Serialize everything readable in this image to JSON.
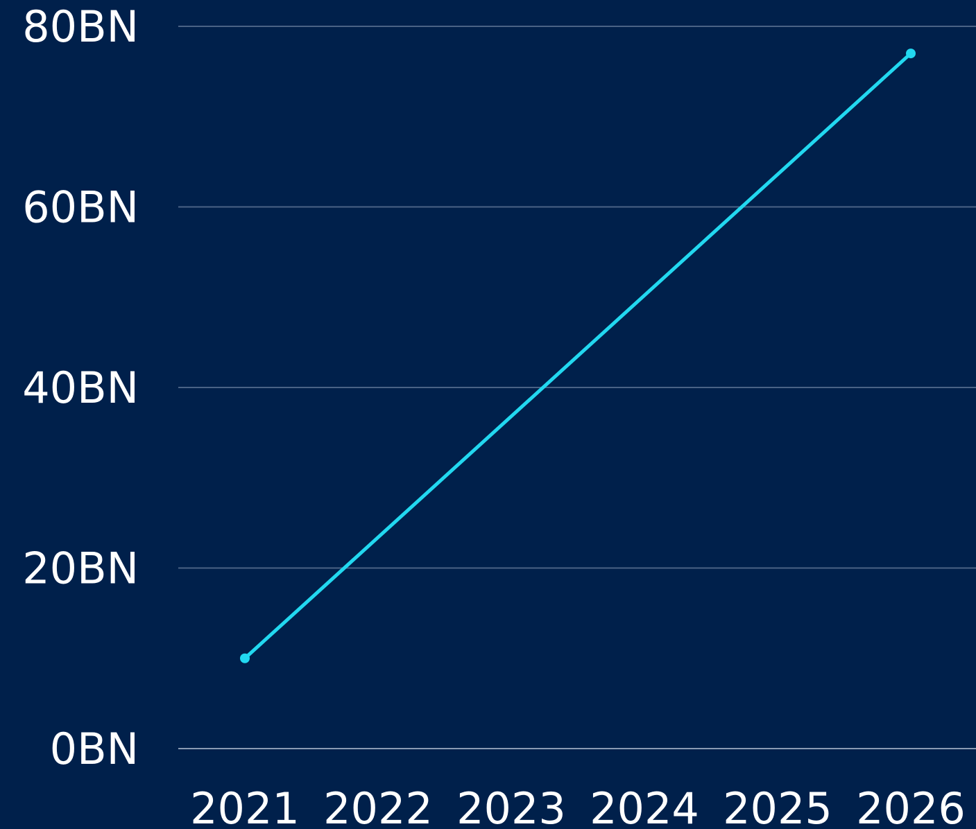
{
  "chart_data": {
    "type": "line",
    "title": "",
    "xlabel": "",
    "ylabel": "",
    "x": [
      "2021",
      "2022",
      "2023",
      "2024",
      "2025",
      "2026"
    ],
    "series": [
      {
        "values": [
          10,
          null,
          null,
          null,
          null,
          77
        ]
      }
    ],
    "ylim": [
      0,
      80
    ],
    "y_ticks": [
      0,
      20,
      40,
      60,
      80
    ],
    "y_tick_labels": [
      "0BN",
      "20BN",
      "40BN",
      "60BN",
      "80BN"
    ],
    "grid": true,
    "legend": "none"
  },
  "colors": {
    "background": "#00204b",
    "line": "#22d8f0",
    "gridline": "#4a6285",
    "baseline": "#8a9bb4",
    "text": "#ffffff"
  }
}
